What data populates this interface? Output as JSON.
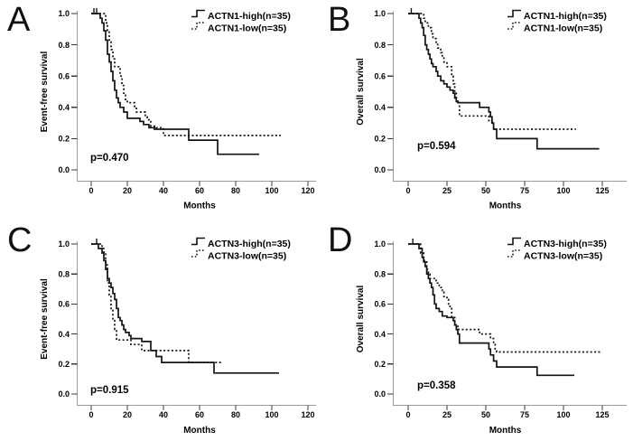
{
  "colors": {
    "background": "#ffffff",
    "curve": "#141414",
    "axis_line": "#9a9a9a",
    "tick_mark": "#3a3a3a",
    "text": "#000000"
  },
  "chart_data": [
    {
      "panel": "A",
      "type": "line",
      "subtype": "kaplan-meier-step",
      "xlabel": "Months",
      "ylabel": "Event-free survival",
      "p_value_label": "p=0.470",
      "x_ticks": [
        0,
        20,
        40,
        60,
        80,
        100,
        120
      ],
      "y_ticks": [
        0.0,
        0.2,
        0.4,
        0.6,
        0.8,
        1.0
      ],
      "xlim": [
        0,
        128
      ],
      "ylim": [
        0.0,
        1.0
      ],
      "grid": false,
      "legend_position": "top-right",
      "series": [
        {
          "name": "ACTN1-high(n=35)",
          "line_style": "solid",
          "steps": [
            [
              0,
              1.0
            ],
            [
              5,
              0.97
            ],
            [
              6,
              0.94
            ],
            [
              7,
              0.89
            ],
            [
              8,
              0.83
            ],
            [
              9,
              0.74
            ],
            [
              10,
              0.69
            ],
            [
              11,
              0.63
            ],
            [
              12,
              0.57
            ],
            [
              13,
              0.51
            ],
            [
              14,
              0.46
            ],
            [
              15,
              0.43
            ],
            [
              16,
              0.4
            ],
            [
              18,
              0.37
            ],
            [
              20,
              0.33
            ],
            [
              27,
              0.31
            ],
            [
              29,
              0.29
            ],
            [
              32,
              0.27
            ],
            [
              35,
              0.26
            ],
            [
              54,
              0.19
            ],
            [
              70,
              0.1
            ]
          ],
          "end_month": 93,
          "censor_marks": [
            [
              1.5,
              1.0
            ],
            [
              3,
              1.0
            ]
          ]
        },
        {
          "name": "ACTN1-low(n=35)",
          "line_style": "dotted",
          "steps": [
            [
              0,
              1.0
            ],
            [
              8,
              0.94
            ],
            [
              9,
              0.89
            ],
            [
              10,
              0.83
            ],
            [
              11,
              0.77
            ],
            [
              12,
              0.71
            ],
            [
              13,
              0.66
            ],
            [
              16,
              0.6
            ],
            [
              17,
              0.54
            ],
            [
              18,
              0.49
            ],
            [
              19,
              0.45
            ],
            [
              20,
              0.43
            ],
            [
              24,
              0.4
            ],
            [
              25,
              0.37
            ],
            [
              30,
              0.34
            ],
            [
              31,
              0.32
            ],
            [
              33,
              0.28
            ],
            [
              36,
              0.27
            ],
            [
              40,
              0.22
            ]
          ],
          "end_month": 105,
          "censor_marks": []
        }
      ]
    },
    {
      "panel": "B",
      "type": "line",
      "subtype": "kaplan-meier-step",
      "xlabel": "Months",
      "ylabel": "Overall survival",
      "p_value_label": "p=0.594",
      "x_ticks": [
        0,
        25,
        50,
        75,
        100,
        125
      ],
      "y_ticks": [
        0.0,
        0.2,
        0.4,
        0.6,
        0.8,
        1.0
      ],
      "xlim": [
        0,
        135
      ],
      "ylim": [
        0.0,
        1.0
      ],
      "grid": false,
      "legend_position": "top-right",
      "series": [
        {
          "name": "ACTN1-high(n=35)",
          "line_style": "solid",
          "steps": [
            [
              0,
              1.0
            ],
            [
              7,
              0.97
            ],
            [
              8,
              0.94
            ],
            [
              9,
              0.91
            ],
            [
              10,
              0.86
            ],
            [
              11,
              0.8
            ],
            [
              12,
              0.77
            ],
            [
              13,
              0.74
            ],
            [
              14,
              0.71
            ],
            [
              15,
              0.68
            ],
            [
              16,
              0.66
            ],
            [
              18,
              0.63
            ],
            [
              19,
              0.6
            ],
            [
              21,
              0.57
            ],
            [
              23,
              0.55
            ],
            [
              25,
              0.53
            ],
            [
              27,
              0.51
            ],
            [
              29,
              0.49
            ],
            [
              30,
              0.46
            ],
            [
              31,
              0.44
            ],
            [
              32,
              0.43
            ],
            [
              46,
              0.4
            ],
            [
              52,
              0.37
            ],
            [
              53,
              0.34
            ],
            [
              54,
              0.3
            ],
            [
              55,
              0.26
            ],
            [
              57,
              0.2
            ],
            [
              83,
              0.135
            ]
          ],
          "end_month": 123,
          "censor_marks": [
            [
              2,
              1.0
            ]
          ]
        },
        {
          "name": "ACTN1-low(n=35)",
          "line_style": "dotted",
          "steps": [
            [
              0,
              1.0
            ],
            [
              10,
              0.97
            ],
            [
              11,
              0.94
            ],
            [
              13,
              0.91
            ],
            [
              15,
              0.87
            ],
            [
              16,
              0.84
            ],
            [
              18,
              0.81
            ],
            [
              19,
              0.78
            ],
            [
              21,
              0.75
            ],
            [
              22,
              0.72
            ],
            [
              23,
              0.69
            ],
            [
              25,
              0.66
            ],
            [
              28,
              0.6
            ],
            [
              29,
              0.55
            ],
            [
              30,
              0.49
            ],
            [
              31,
              0.43
            ],
            [
              33,
              0.345
            ],
            [
              52,
              0.31
            ],
            [
              55,
              0.26
            ]
          ],
          "end_month": 108,
          "censor_marks": []
        }
      ]
    },
    {
      "panel": "C",
      "type": "line",
      "subtype": "kaplan-meier-step",
      "xlabel": "Months",
      "ylabel": "Event-free survival",
      "p_value_label": "p=0.915",
      "x_ticks": [
        0,
        20,
        40,
        60,
        80,
        100,
        120
      ],
      "y_ticks": [
        0.0,
        0.2,
        0.4,
        0.6,
        0.8,
        1.0
      ],
      "xlim": [
        0,
        128
      ],
      "ylim": [
        0.0,
        1.0
      ],
      "grid": false,
      "legend_position": "top-right",
      "series": [
        {
          "name": "ACTN3-high(n=35)",
          "line_style": "solid",
          "steps": [
            [
              0,
              1.0
            ],
            [
              4,
              0.97
            ],
            [
              6,
              0.94
            ],
            [
              7,
              0.89
            ],
            [
              8,
              0.83
            ],
            [
              9,
              0.77
            ],
            [
              10,
              0.74
            ],
            [
              11,
              0.71
            ],
            [
              12,
              0.67
            ],
            [
              13,
              0.63
            ],
            [
              14,
              0.57
            ],
            [
              15,
              0.51
            ],
            [
              16,
              0.49
            ],
            [
              17,
              0.46
            ],
            [
              18,
              0.43
            ],
            [
              19,
              0.41
            ],
            [
              21,
              0.39
            ],
            [
              22,
              0.37
            ],
            [
              28,
              0.35
            ],
            [
              33,
              0.29
            ],
            [
              36,
              0.25
            ],
            [
              39,
              0.21
            ],
            [
              68,
              0.14
            ]
          ],
          "end_month": 104,
          "censor_marks": [
            [
              3,
              1.0
            ]
          ]
        },
        {
          "name": "ACTN3-low(n=35)",
          "line_style": "dotted",
          "steps": [
            [
              0,
              1.0
            ],
            [
              6,
              0.97
            ],
            [
              7,
              0.94
            ],
            [
              8,
              0.86
            ],
            [
              9,
              0.74
            ],
            [
              10,
              0.66
            ],
            [
              11,
              0.57
            ],
            [
              12,
              0.49
            ],
            [
              13,
              0.43
            ],
            [
              14,
              0.36
            ],
            [
              22,
              0.33
            ],
            [
              28,
              0.29
            ],
            [
              54,
              0.21
            ]
          ],
          "end_month": 72,
          "censor_marks": []
        }
      ]
    },
    {
      "panel": "D",
      "type": "line",
      "subtype": "kaplan-meier-step",
      "xlabel": "Months",
      "ylabel": "Overall survival",
      "p_value_label": "p=0.358",
      "x_ticks": [
        0,
        25,
        50,
        75,
        100,
        125
      ],
      "y_ticks": [
        0.0,
        0.2,
        0.4,
        0.6,
        0.8,
        1.0
      ],
      "xlim": [
        0,
        135
      ],
      "ylim": [
        0.0,
        1.0
      ],
      "grid": false,
      "legend_position": "top-right",
      "series": [
        {
          "name": "ACTN3-high(n=35)",
          "line_style": "solid",
          "steps": [
            [
              0,
              1.0
            ],
            [
              7,
              0.97
            ],
            [
              9,
              0.91
            ],
            [
              10,
              0.88
            ],
            [
              11,
              0.85
            ],
            [
              12,
              0.8
            ],
            [
              13,
              0.77
            ],
            [
              14,
              0.74
            ],
            [
              15,
              0.71
            ],
            [
              16,
              0.66
            ],
            [
              17,
              0.6
            ],
            [
              18,
              0.57
            ],
            [
              20,
              0.55
            ],
            [
              22,
              0.52
            ],
            [
              25,
              0.51
            ],
            [
              29,
              0.49
            ],
            [
              30,
              0.46
            ],
            [
              31,
              0.43
            ],
            [
              32,
              0.4
            ],
            [
              33,
              0.34
            ],
            [
              52,
              0.3
            ],
            [
              53,
              0.26
            ],
            [
              55,
              0.22
            ],
            [
              57,
              0.18
            ],
            [
              83,
              0.125
            ]
          ],
          "end_month": 107,
          "censor_marks": [
            [
              3,
              1.0
            ]
          ]
        },
        {
          "name": "ACTN3-low(n=35)",
          "line_style": "dotted",
          "steps": [
            [
              0,
              1.0
            ],
            [
              8,
              0.94
            ],
            [
              10,
              0.89
            ],
            [
              12,
              0.83
            ],
            [
              13,
              0.8
            ],
            [
              14,
              0.77
            ],
            [
              18,
              0.74
            ],
            [
              20,
              0.71
            ],
            [
              22,
              0.68
            ],
            [
              23,
              0.65
            ],
            [
              25,
              0.63
            ],
            [
              26,
              0.6
            ],
            [
              27,
              0.57
            ],
            [
              28,
              0.51
            ],
            [
              30,
              0.46
            ],
            [
              32,
              0.43
            ],
            [
              46,
              0.4
            ],
            [
              53,
              0.37
            ],
            [
              55,
              0.33
            ],
            [
              56,
              0.3
            ],
            [
              57,
              0.28
            ]
          ],
          "end_month": 125,
          "censor_marks": []
        }
      ]
    }
  ]
}
